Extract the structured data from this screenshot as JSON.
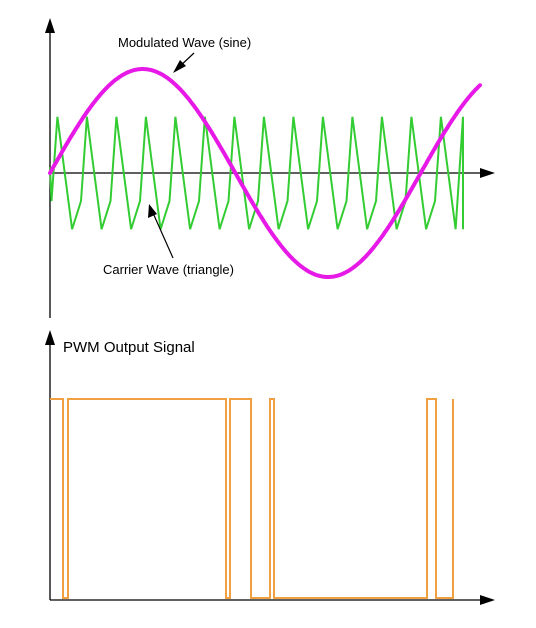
{
  "labels": {
    "modulated": "Modulated Wave (sine)",
    "carrier": "Carrier Wave (triangle)",
    "pwm": "PWM Output Signal"
  },
  "colors": {
    "axis": "#000000",
    "sine": "#e619e6",
    "triangle": "#33cc33",
    "pwm": "#f0a040"
  },
  "waves": {
    "sine_cycles_shown": 1.16,
    "triangle_peaks_shown": 14,
    "triangle_to_sine_amplitude_ratio": 0.54
  },
  "pwm_output": {
    "levels": [
      "high",
      "low",
      "high",
      "low",
      "high",
      "low",
      "high",
      "low",
      "high",
      "low",
      "high",
      "low",
      "high",
      "low"
    ]
  }
}
